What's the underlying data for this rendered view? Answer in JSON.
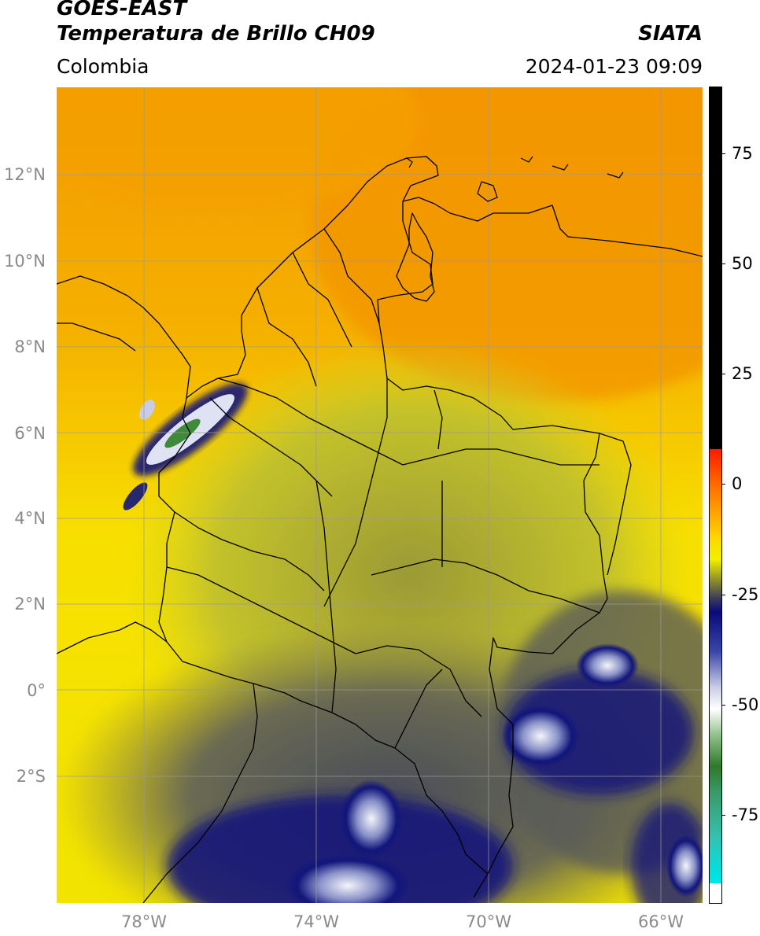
{
  "header": {
    "line1": "GOES-EAST",
    "line2": "Temperatura de Brillo CH09",
    "source": "SIATA",
    "region": "Colombia",
    "datetime": "2024-01-23 09:09"
  },
  "map": {
    "lat_labels": [
      "12°N",
      "10°N",
      "8°N",
      "6°N",
      "4°N",
      "2°N",
      "0°",
      "2°S"
    ],
    "lon_labels": [
      "78°W",
      "74°W",
      "70°W",
      "66°W"
    ],
    "colors": {
      "background": "#f5b400",
      "north_orange": "#f49a00",
      "yellow": "#f7e000",
      "olive": "#b8b428",
      "gray_olive": "#6a6a52",
      "deep_blue": "#12157a",
      "cloud_white": "#f4f6fa",
      "green": "#3f8a3a",
      "borders": "#000000",
      "graticule": "#9a9a9a"
    }
  },
  "colorbar": {
    "tick_labels": [
      "75",
      "50",
      "25",
      "0",
      "-25",
      "-50",
      "-75"
    ],
    "tick_values": [
      75,
      50,
      25,
      0,
      -25,
      -50,
      -75
    ],
    "range": [
      -95,
      90
    ],
    "stops": [
      {
        "value": 90,
        "color": "#000000"
      },
      {
        "value": 8,
        "color": "#000000"
      },
      {
        "value": 7.9,
        "color": "#ff1a00"
      },
      {
        "value": 0,
        "color": "#ff6a00"
      },
      {
        "value": -12,
        "color": "#ffd400"
      },
      {
        "value": -17,
        "color": "#f2f000"
      },
      {
        "value": -22,
        "color": "#8a8a30"
      },
      {
        "value": -26,
        "color": "#3a3a5a"
      },
      {
        "value": -29,
        "color": "#0a0a7a"
      },
      {
        "value": -38,
        "color": "#3a46a8"
      },
      {
        "value": -46,
        "color": "#c8cce6"
      },
      {
        "value": -51,
        "color": "#ffffff"
      },
      {
        "value": -57,
        "color": "#8fc08a"
      },
      {
        "value": -64,
        "color": "#2e7a2a"
      },
      {
        "value": -70,
        "color": "#3a9a6a"
      },
      {
        "value": -80,
        "color": "#35c0b0"
      },
      {
        "value": -88,
        "color": "#00e0e0"
      },
      {
        "value": -90.5,
        "color": "#00e6e6"
      },
      {
        "value": -90.6,
        "color": "#ffffff"
      },
      {
        "value": -95,
        "color": "#ffffff"
      }
    ]
  }
}
